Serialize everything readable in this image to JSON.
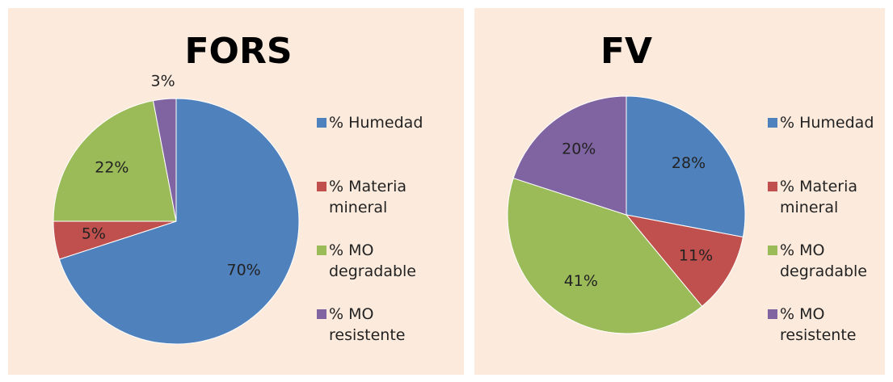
{
  "chart_data": [
    {
      "type": "pie",
      "title": "FORS",
      "categories": [
        "% Humedad",
        "% Materia mineral",
        "% MO degradable",
        "% MO resistente"
      ],
      "values": [
        70,
        5,
        22,
        3
      ],
      "value_labels": [
        "70%",
        "5%",
        "22%",
        "3%"
      ],
      "colors": [
        "#4f81bd",
        "#c0504d",
        "#9bbb59",
        "#8064a2"
      ],
      "legend": "right"
    },
    {
      "type": "pie",
      "title": "FV",
      "categories": [
        "% Humedad",
        "% Materia mineral",
        "% MO degradable",
        "% MO resistente"
      ],
      "values": [
        28,
        11,
        41,
        20
      ],
      "value_labels": [
        "28%",
        "11%",
        "41%",
        "20%"
      ],
      "colors": [
        "#4f81bd",
        "#c0504d",
        "#9bbb59",
        "#8064a2"
      ],
      "legend": "right"
    }
  ]
}
